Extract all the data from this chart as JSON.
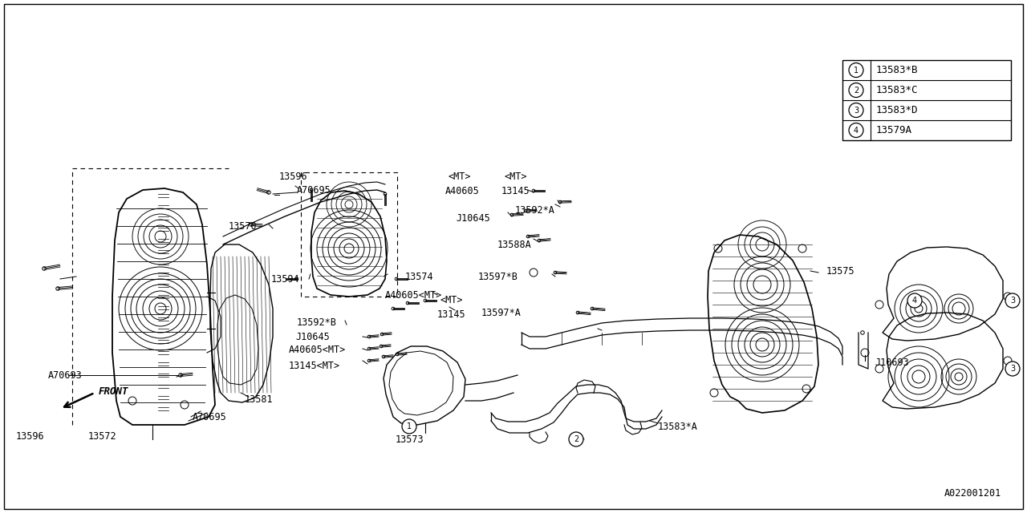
{
  "bg_color": "#ffffff",
  "line_color": "#000000",
  "legend_items": [
    {
      "num": "1",
      "text": "13583*B"
    },
    {
      "num": "2",
      "text": "13583*C"
    },
    {
      "num": "3",
      "text": "13583*D"
    },
    {
      "num": "4",
      "text": "13579A"
    }
  ],
  "part_number": "A022001201"
}
